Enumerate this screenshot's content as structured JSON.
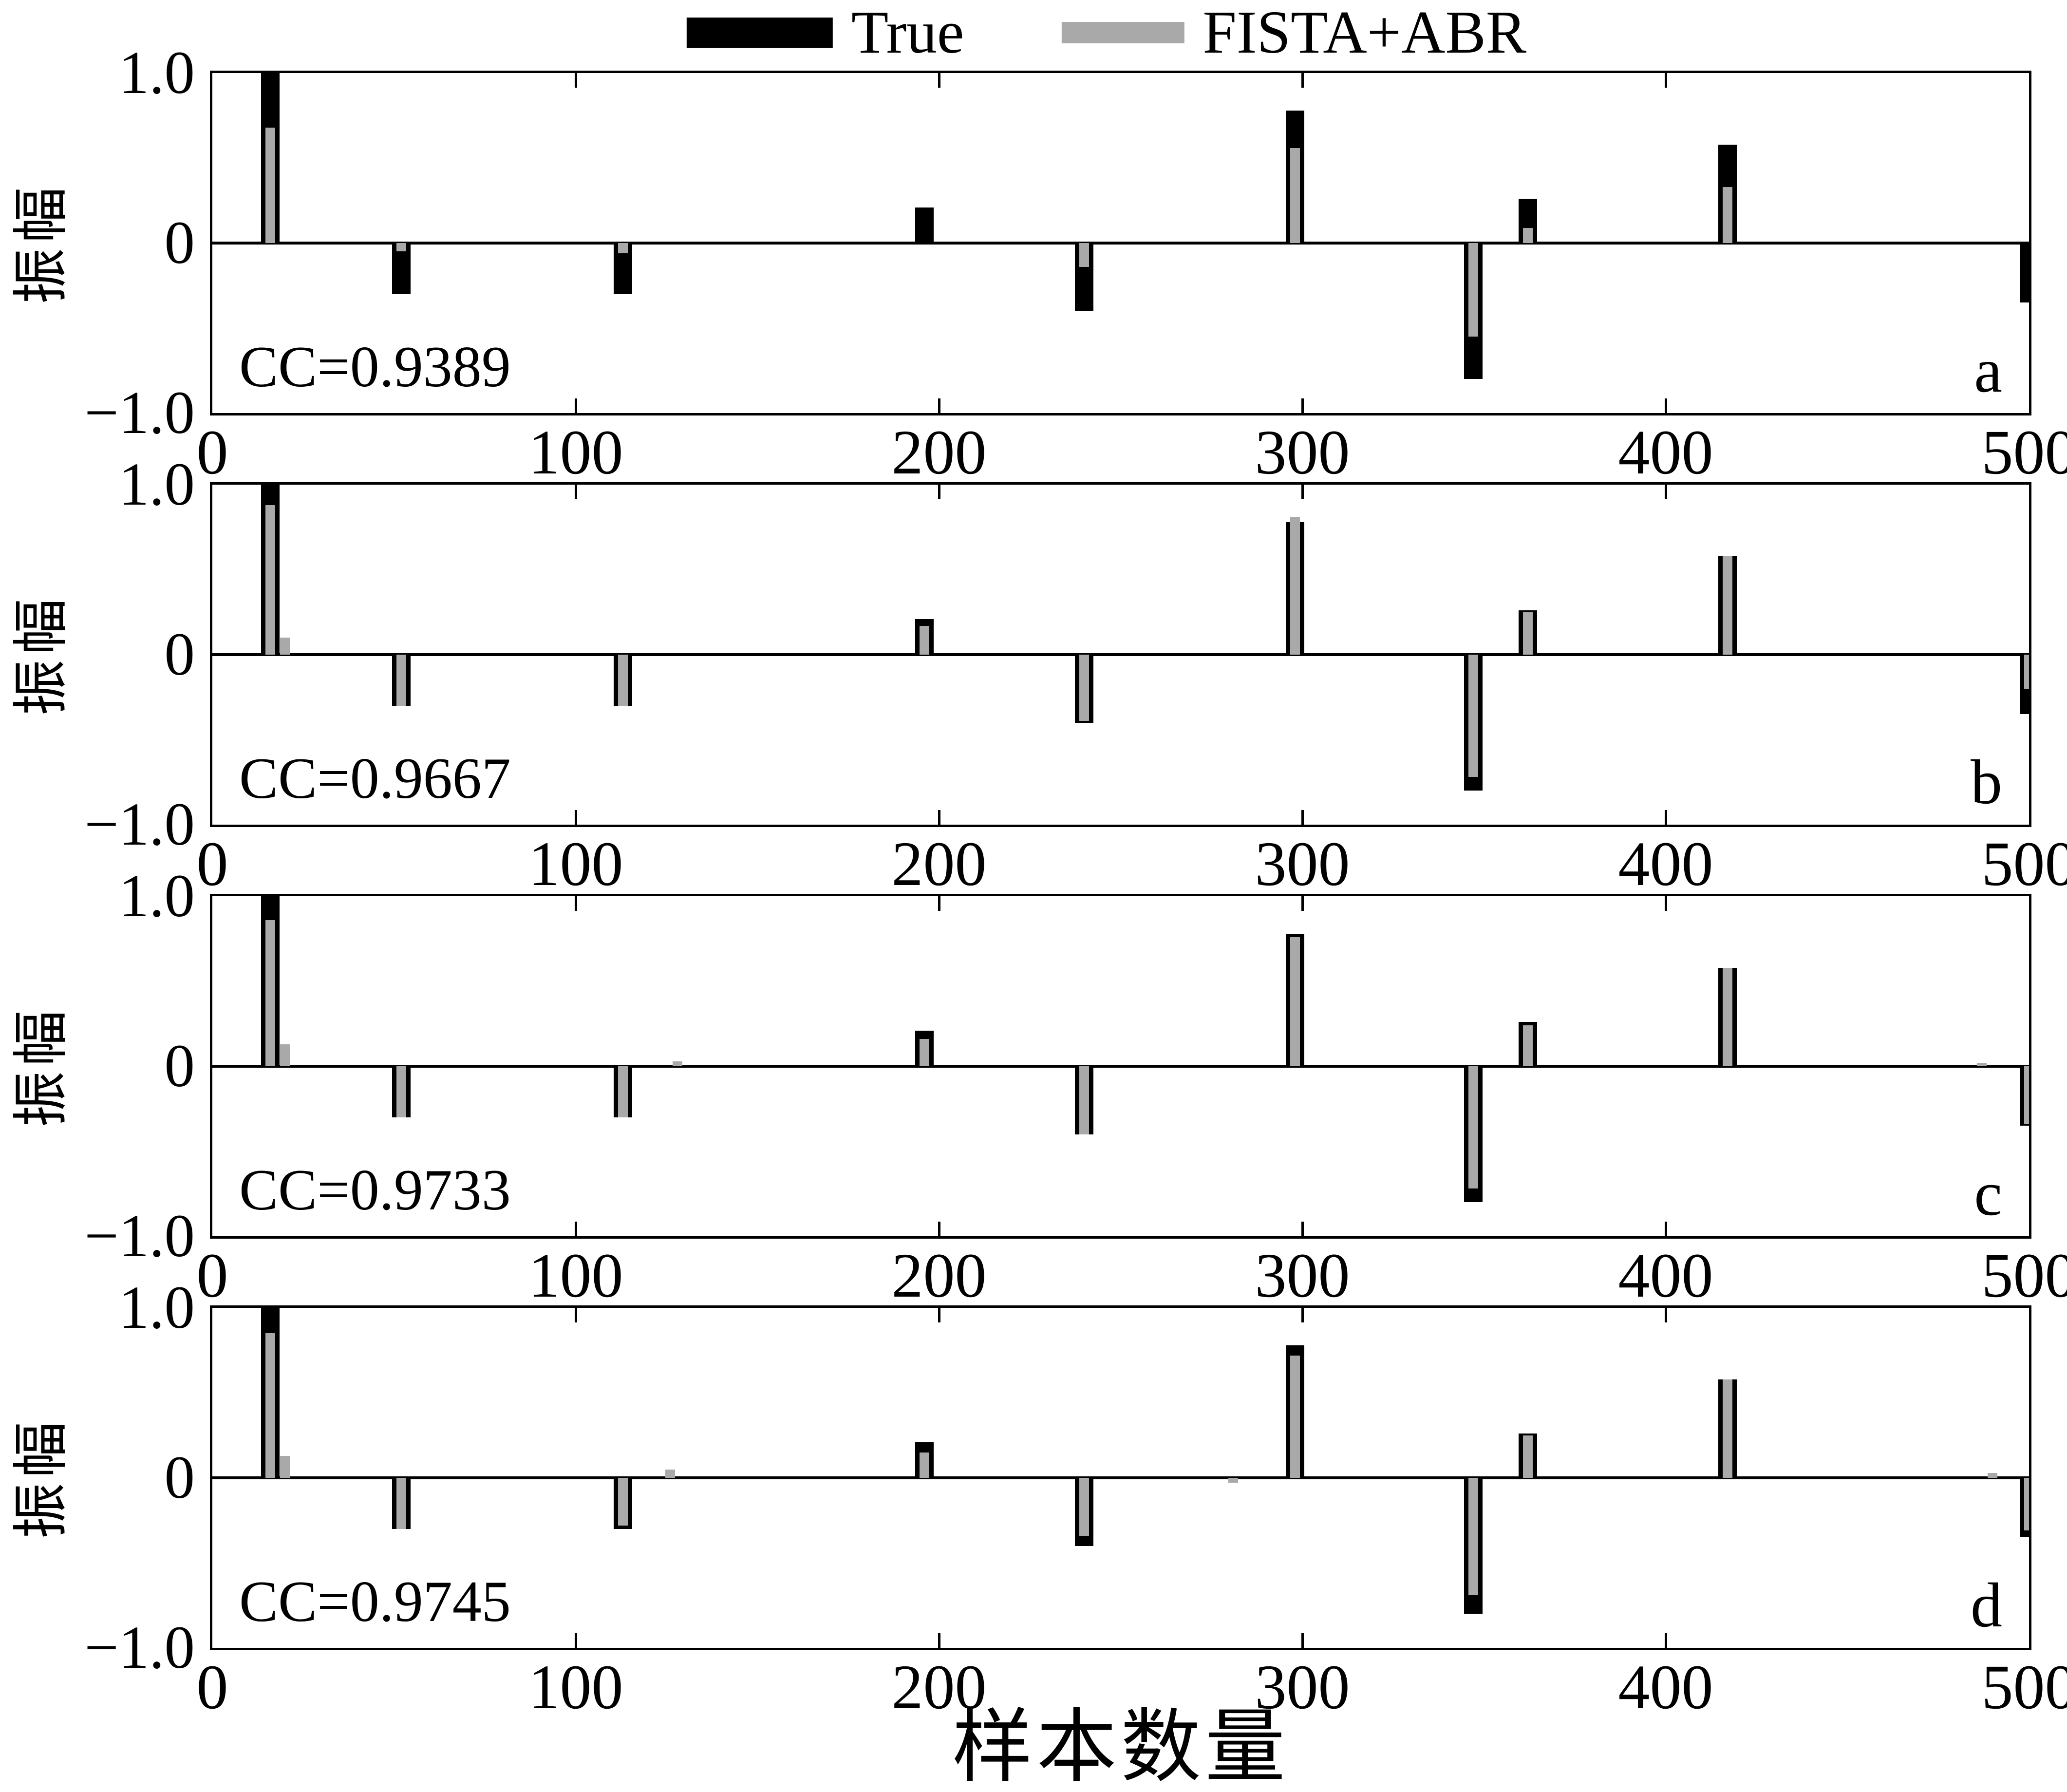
{
  "colors": {
    "true_series": "#000000",
    "fista_series": "#A9A9A9",
    "axis": "#000000",
    "background": "#ffffff"
  },
  "legend": {
    "entries": [
      {
        "label": "True",
        "swatch_color": "#000000"
      },
      {
        "label": "FISTA+ABR",
        "swatch_color": "#A9A9A9"
      }
    ]
  },
  "axes": {
    "ylabel": "振幅",
    "xlabel": "样本数量",
    "yticks": [
      "1.0",
      "0",
      "−1.0"
    ],
    "xticks": [
      0,
      100,
      200,
      300,
      400,
      500
    ]
  },
  "chart_data": {
    "type": "bar",
    "title": "",
    "xlabel": "样本数量",
    "ylabel": "振幅",
    "xlim": [
      0,
      500
    ],
    "ylim": [
      -1.0,
      1.0
    ],
    "x_tick_values": [
      0,
      100,
      200,
      300,
      400,
      500
    ],
    "y_tick_values": [
      1.0,
      0,
      -1.0
    ],
    "grid": false,
    "legend_position": "top-center",
    "series_names": [
      "True",
      "FISTA+ABR"
    ],
    "true_series_spikes": [
      [
        16,
        1.0
      ],
      [
        52,
        -0.3
      ],
      [
        113,
        -0.3
      ],
      [
        196,
        0.21
      ],
      [
        240,
        -0.4
      ],
      [
        298,
        0.78
      ],
      [
        347,
        -0.8
      ],
      [
        362,
        0.26
      ],
      [
        417,
        0.58
      ],
      [
        500,
        -0.35
      ]
    ],
    "panels": [
      {
        "letter": "a",
        "cc_label": "CC=0.9389",
        "fista_spikes": [
          [
            16,
            0.68
          ],
          [
            52,
            -0.05
          ],
          [
            113,
            -0.06
          ],
          [
            240,
            -0.14
          ],
          [
            298,
            0.56
          ],
          [
            347,
            -0.55
          ],
          [
            362,
            0.09
          ],
          [
            417,
            0.33
          ]
        ]
      },
      {
        "letter": "b",
        "cc_label": "CC=0.9667",
        "fista_spikes": [
          [
            16,
            0.88
          ],
          [
            20,
            0.1
          ],
          [
            52,
            -0.3
          ],
          [
            113,
            -0.3
          ],
          [
            196,
            0.17
          ],
          [
            240,
            -0.39
          ],
          [
            298,
            0.81
          ],
          [
            347,
            -0.72
          ],
          [
            362,
            0.25
          ],
          [
            417,
            0.58
          ],
          [
            500,
            -0.2
          ]
        ]
      },
      {
        "letter": "c",
        "cc_label": "CC=0.9733",
        "fista_spikes": [
          [
            16,
            0.86
          ],
          [
            20,
            0.13
          ],
          [
            52,
            -0.3
          ],
          [
            113,
            -0.3
          ],
          [
            128,
            0.03
          ],
          [
            196,
            0.16
          ],
          [
            240,
            -0.4
          ],
          [
            298,
            0.76
          ],
          [
            347,
            -0.72
          ],
          [
            362,
            0.24
          ],
          [
            417,
            0.58
          ],
          [
            487,
            0.02
          ],
          [
            500,
            -0.34
          ]
        ]
      },
      {
        "letter": "d",
        "cc_label": "CC=0.9745",
        "fista_spikes": [
          [
            16,
            0.85
          ],
          [
            20,
            0.13
          ],
          [
            52,
            -0.3
          ],
          [
            113,
            -0.28
          ],
          [
            126,
            0.05
          ],
          [
            196,
            0.15
          ],
          [
            240,
            -0.34
          ],
          [
            281,
            -0.03
          ],
          [
            298,
            0.72
          ],
          [
            347,
            -0.69
          ],
          [
            362,
            0.25
          ],
          [
            417,
            0.58
          ],
          [
            490,
            0.03
          ],
          [
            500,
            -0.31
          ]
        ]
      }
    ]
  }
}
